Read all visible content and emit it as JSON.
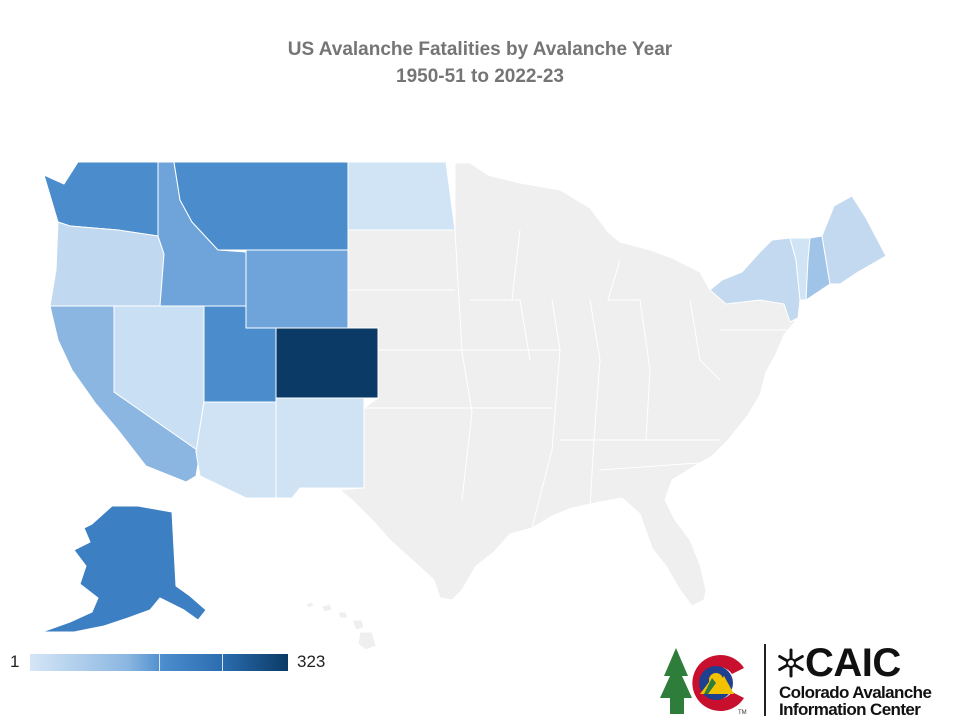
{
  "title": {
    "line1": "US Avalanche Fatalities by Avalanche Year",
    "line2": "1950-51 to 2022-23"
  },
  "legend": {
    "min": "1",
    "max": "323"
  },
  "logo": {
    "acronym": "CAIC",
    "line1": "Colorado Avalanche",
    "line2": "Information Center",
    "tm": "TM",
    "icon": "snowflake-icon"
  },
  "colors": {
    "no_data": "#efefef",
    "border": "#d2d2d2",
    "ramp": [
      "#d5e6f6",
      "#bad5ef",
      "#9fc4e8",
      "#8ab6e1",
      "#6ea4d9",
      "#4a8ccc",
      "#2f74b8",
      "#0b3a66"
    ]
  }
}
